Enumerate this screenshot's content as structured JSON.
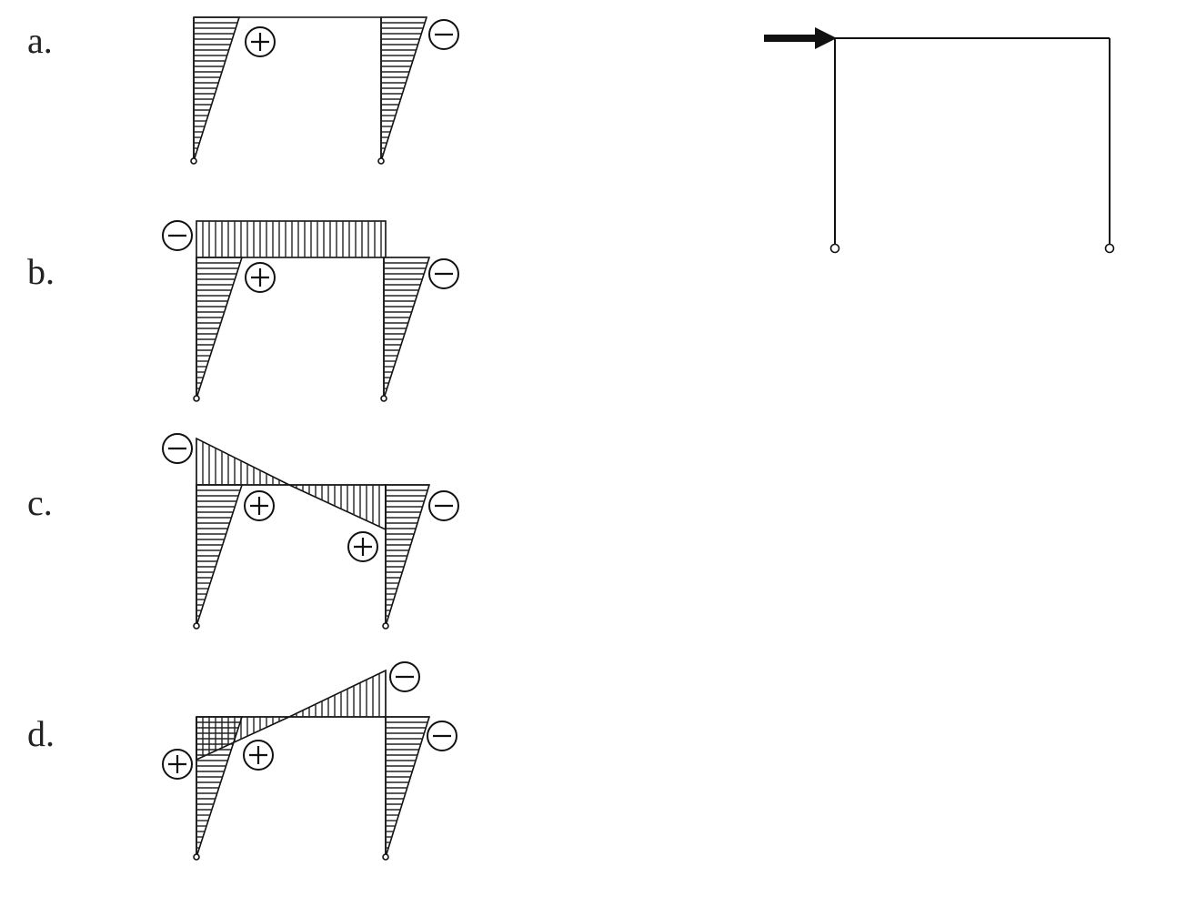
{
  "options": [
    {
      "id": "a",
      "label": "a."
    },
    {
      "id": "b",
      "label": "b."
    },
    {
      "id": "c",
      "label": "c."
    },
    {
      "id": "d",
      "label": "d."
    }
  ],
  "signs": {
    "plus": "+",
    "minus": "−"
  },
  "load": {
    "direction": "horizontal",
    "points": "right",
    "applied_at": "top-left-corner"
  },
  "colors": {
    "ink": "#111111",
    "background": "#ffffff"
  }
}
